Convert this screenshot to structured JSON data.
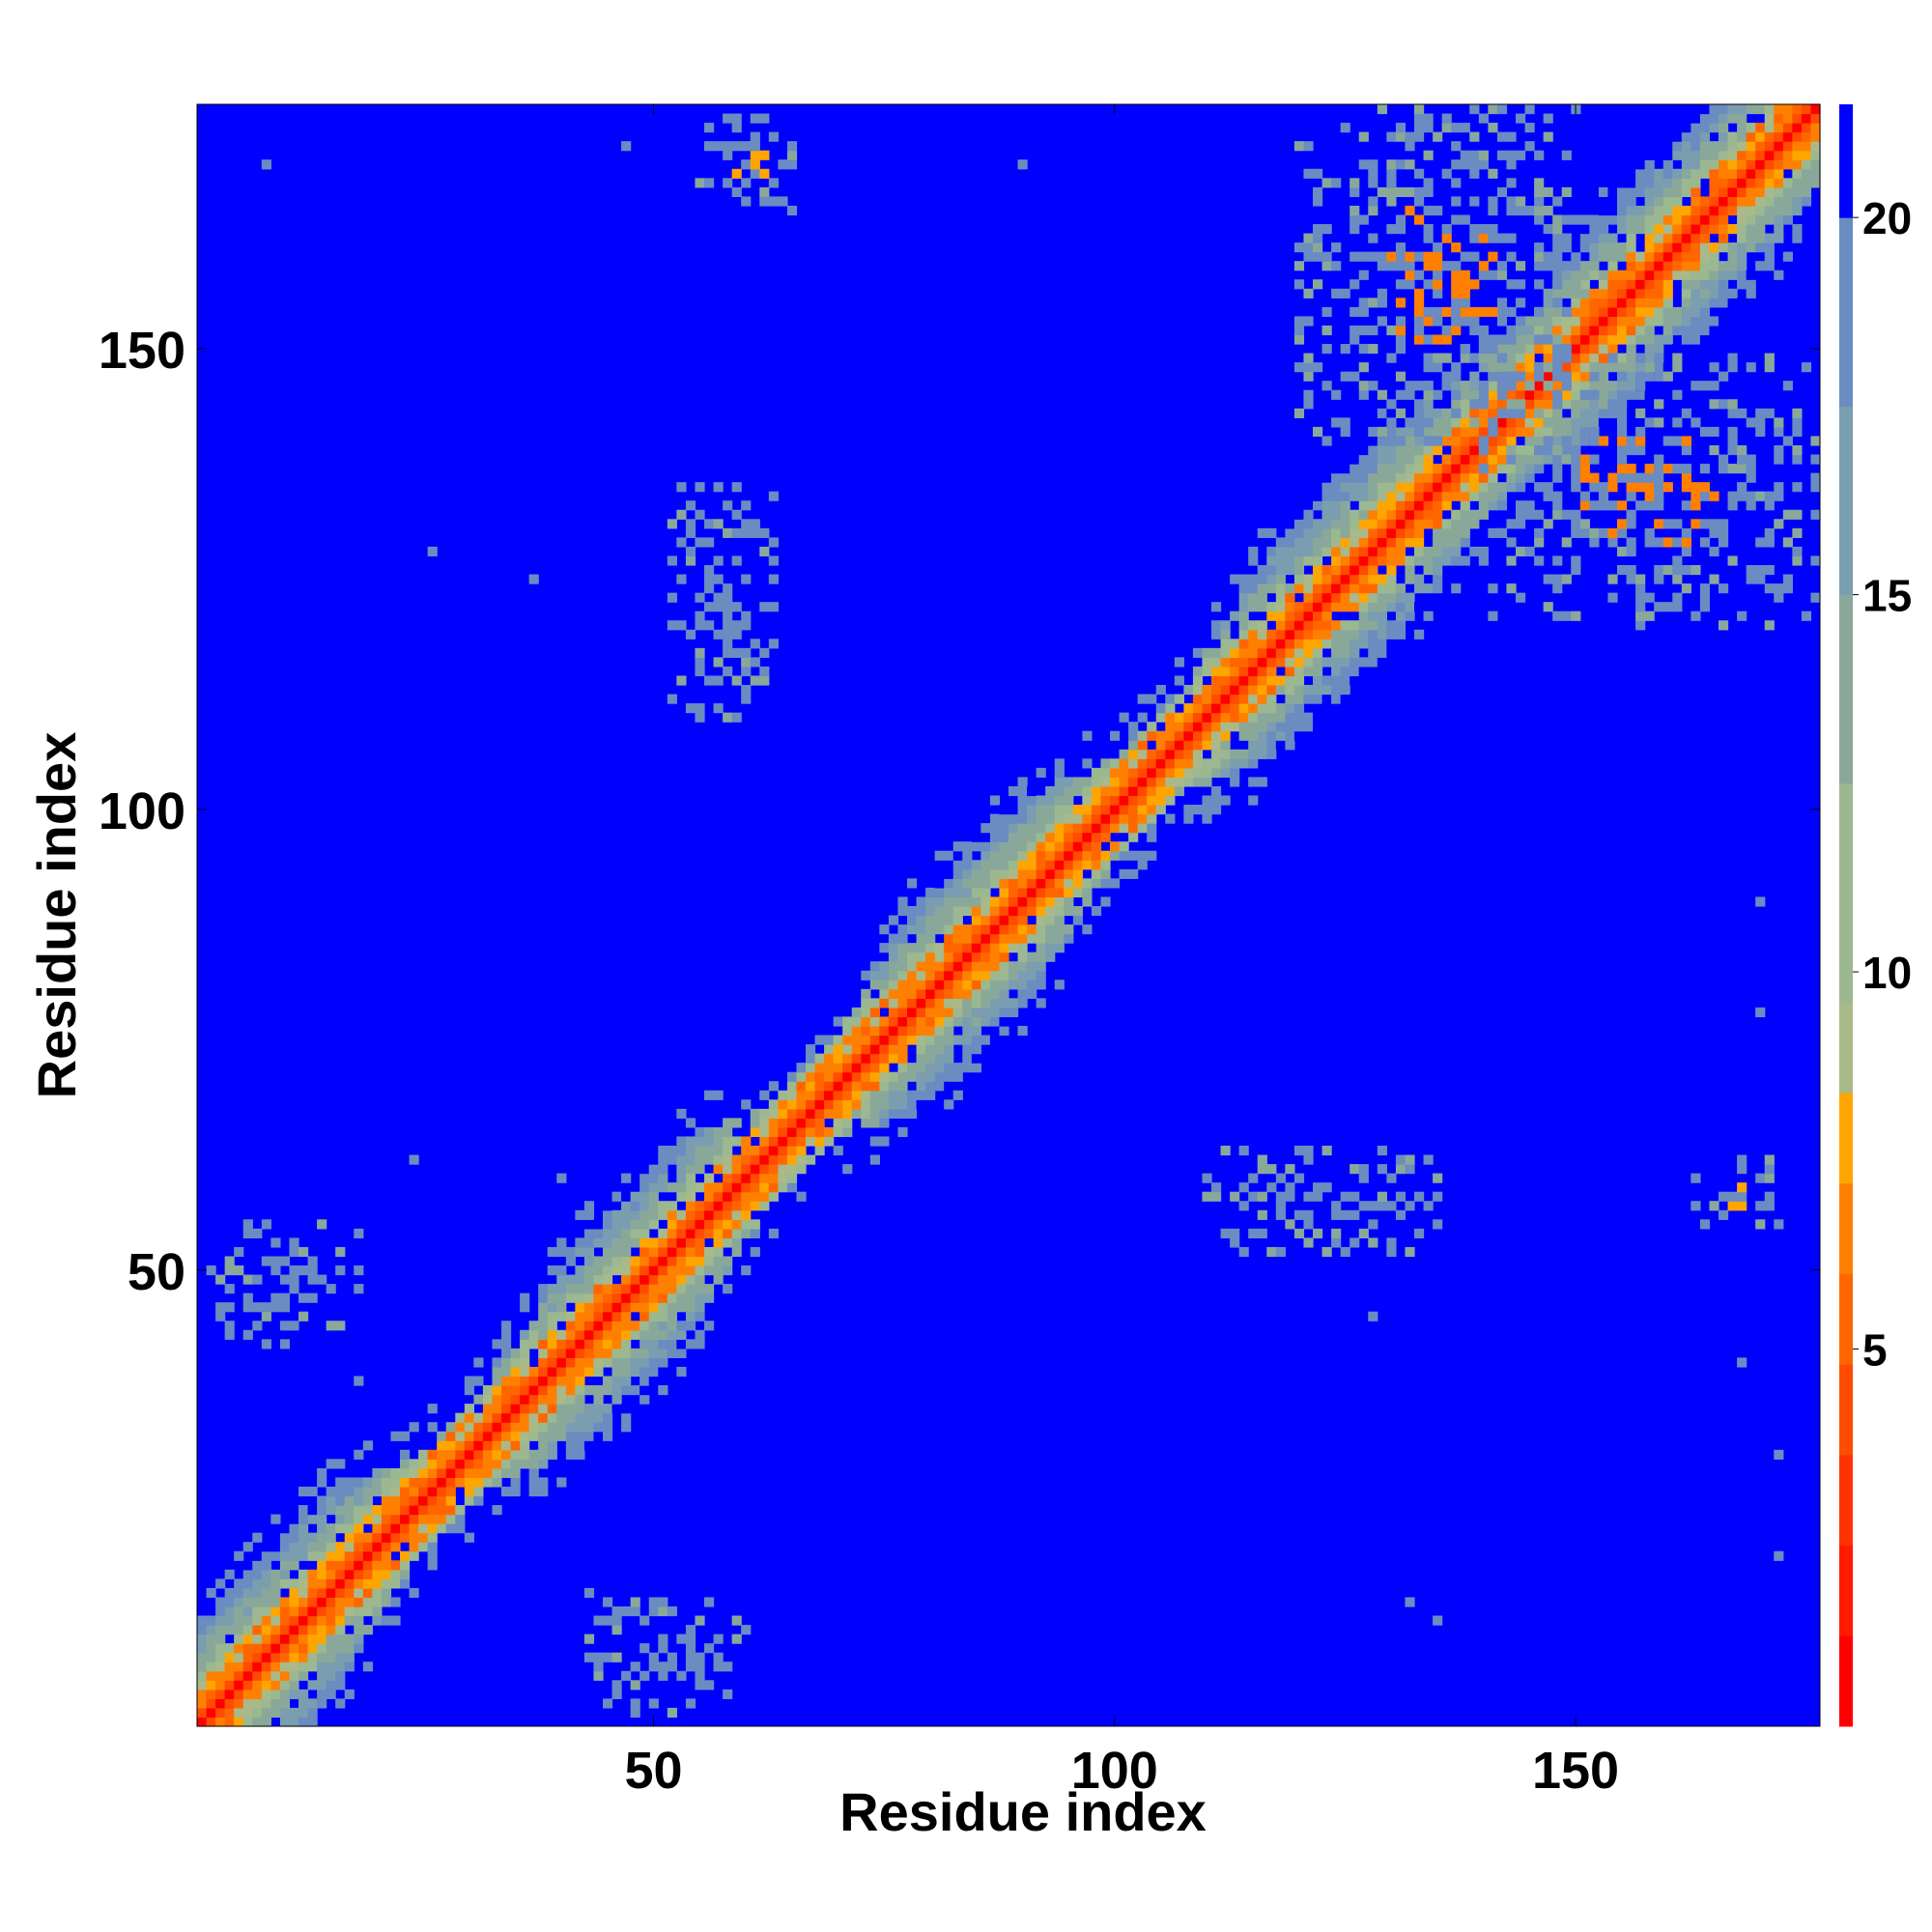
{
  "chart_data": {
    "type": "heatmap",
    "title": "",
    "xlabel": "Residue index",
    "ylabel": "Residue index",
    "xlim": [
      1,
      176
    ],
    "ylim": [
      1,
      176
    ],
    "x_ticks": [
      50,
      100,
      150
    ],
    "y_ticks": [
      50,
      100,
      150
    ],
    "value_unit": "",
    "colorbar": {
      "ticks": [
        5,
        10,
        15,
        20
      ],
      "range": [
        0,
        21.5
      ],
      "levels": [
        {
          "max": 1.2,
          "color": "#ff0000"
        },
        {
          "max": 2.4,
          "color": "#ff1a00"
        },
        {
          "max": 3.6,
          "color": "#ff3300"
        },
        {
          "max": 4.8,
          "color": "#ff4c00"
        },
        {
          "max": 6.0,
          "color": "#ff6600"
        },
        {
          "max": 7.2,
          "color": "#ff8000"
        },
        {
          "max": 8.4,
          "color": "#ffa500"
        },
        {
          "max": 9.6,
          "color": "#a9b98a"
        },
        {
          "max": 12.5,
          "color": "#9cb890"
        },
        {
          "max": 15.0,
          "color": "#8aa89a"
        },
        {
          "max": 17.5,
          "color": "#7b9db0"
        },
        {
          "max": 20.0,
          "color": "#6a8cc0"
        },
        {
          "max": 21.5,
          "color": "#0000ff"
        }
      ]
    },
    "background_color": "#0000ff",
    "diagonal_band": {
      "description_colors": [
        "#ff0000",
        "#ff8000",
        "#ffa500",
        "#9cb890",
        "#6a8cc0"
      ]
    },
    "contact_patches": [
      {
        "x": [
          55,
          65
        ],
        "y": [
          165,
          175
        ],
        "core": "#ffa500"
      },
      {
        "x": [
          163,
          172
        ],
        "y": [
          55,
          62
        ],
        "core": "#ffa500"
      },
      {
        "x": [
          2,
          18
        ],
        "y": [
          42,
          55
        ],
        "core": "#6a8cc0"
      },
      {
        "x": [
          42,
          60
        ],
        "y": [
          2,
          15
        ],
        "core": "#6a8cc0"
      },
      {
        "x": [
          120,
          150
        ],
        "y": [
          140,
          176
        ],
        "core": "#ff8000"
      },
      {
        "x": [
          140,
          176
        ],
        "y": [
          120,
          150
        ],
        "core": "#ff8000"
      },
      {
        "x": [
          52,
          63
        ],
        "y": [
          110,
          135
        ],
        "core": "#6a8cc0"
      },
      {
        "x": [
          110,
          135
        ],
        "y": [
          52,
          63
        ],
        "core": "#6a8cc0"
      }
    ]
  }
}
